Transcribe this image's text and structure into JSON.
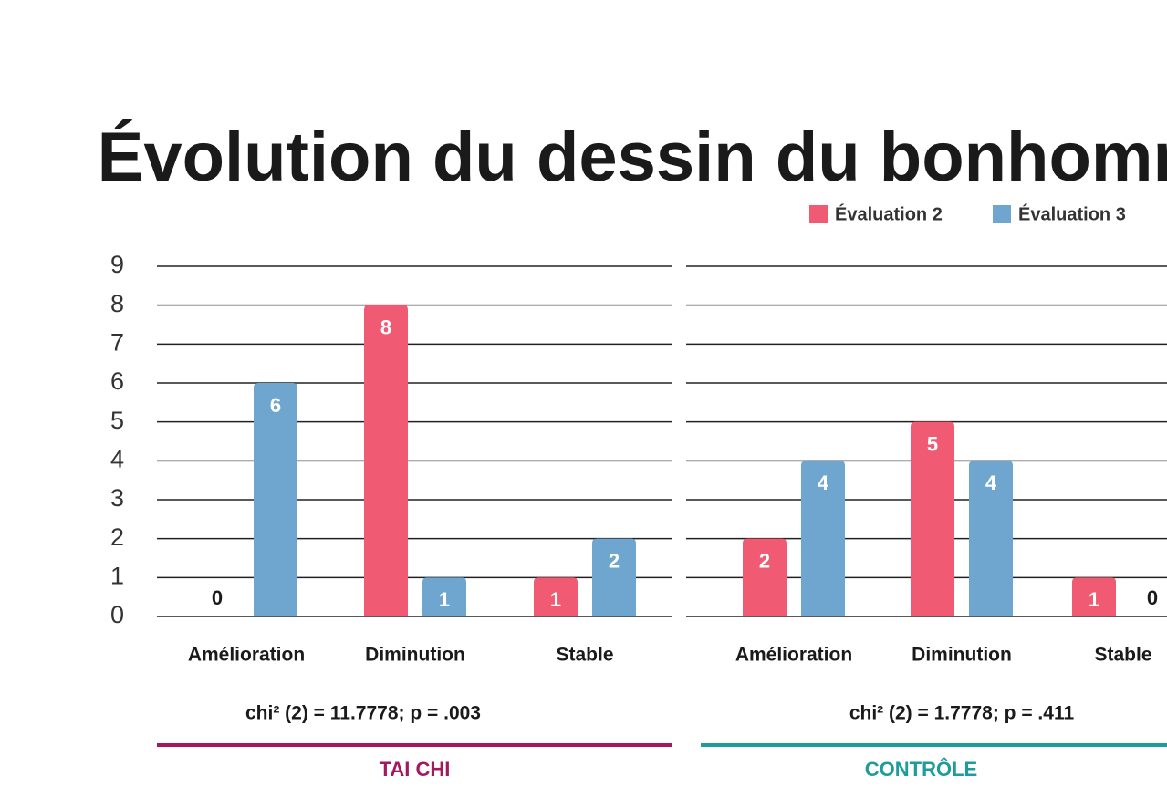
{
  "title": "Évolution du dessin du bonhomme",
  "chart_data": [
    {
      "type": "bar",
      "group": "TAI CHI",
      "group_color": "#a3195f",
      "subtitle": "chi² (2) = 11.7778; p = .003",
      "categories": [
        "Amélioration",
        "Diminution",
        "Stable"
      ],
      "series": [
        {
          "name": "Évaluation 2",
          "color": "#f05a72",
          "values": [
            0,
            8,
            1
          ]
        },
        {
          "name": "Évaluation 3",
          "color": "#6ea6d0",
          "values": [
            6,
            1,
            2
          ]
        }
      ],
      "ylim": [
        0,
        9
      ],
      "yticks": [
        0,
        1,
        2,
        3,
        4,
        5,
        6,
        7,
        8,
        9
      ],
      "grid": true
    },
    {
      "type": "bar",
      "group": "CONTRÔLE",
      "group_color": "#1e9c9a",
      "subtitle": "chi² (2) = 1.7778; p = .411",
      "categories": [
        "Amélioration",
        "Diminution",
        "Stable"
      ],
      "series": [
        {
          "color": "#f05a72",
          "values": [
            2,
            5,
            1
          ]
        },
        {
          "color": "#6ea6d0",
          "values": [
            4,
            4,
            0
          ]
        }
      ],
      "ylim": [
        0,
        9
      ],
      "yticks": [
        0,
        1,
        2,
        3,
        4,
        5,
        6,
        7,
        8,
        9
      ],
      "grid": true
    }
  ]
}
